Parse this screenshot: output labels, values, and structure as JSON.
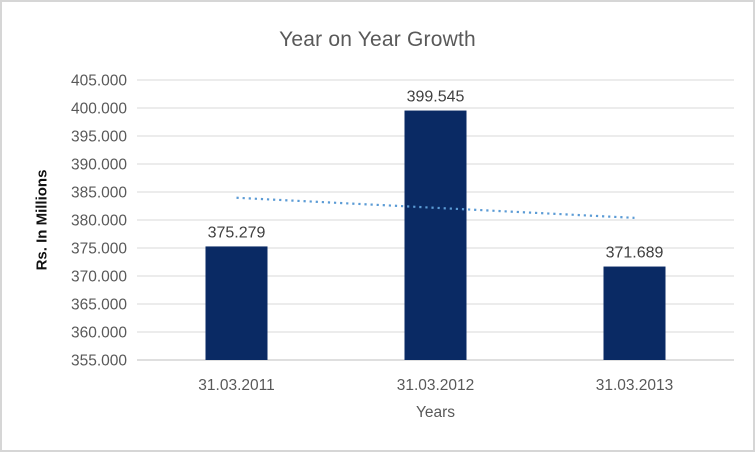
{
  "chart_data": {
    "type": "bar",
    "title": "Year on Year Growth",
    "xlabel": "Years",
    "ylabel": "Rs. In Millions",
    "categories": [
      "31.03.2011",
      "31.03.2012",
      "31.03.2013"
    ],
    "values": [
      375.279,
      399.545,
      371.689
    ],
    "data_labels": [
      "375.279",
      "399.545",
      "371.689"
    ],
    "ylim": [
      355,
      405
    ],
    "y_tick_step": 5,
    "y_tick_labels": [
      "355.000",
      "360.000",
      "365.000",
      "370.000",
      "375.000",
      "380.000",
      "385.000",
      "390.000",
      "395.000",
      "400.000",
      "405.000"
    ],
    "grid": true,
    "legend": false,
    "trendline": {
      "type": "linear",
      "style": "dotted",
      "start_value": 383.97,
      "end_value": 380.38
    },
    "colors": {
      "bar": "#0a2a64",
      "trendline": "#5b9bd5",
      "gridline": "#d9d9d9",
      "axis_line": "#bfbfbf",
      "title_text": "#595959",
      "tick_text": "#595959",
      "category_text": "#595959",
      "data_label_text": "#404040",
      "axis_title_text": "#111111",
      "background": "#ffffff",
      "border": "#d6d6d6"
    }
  }
}
